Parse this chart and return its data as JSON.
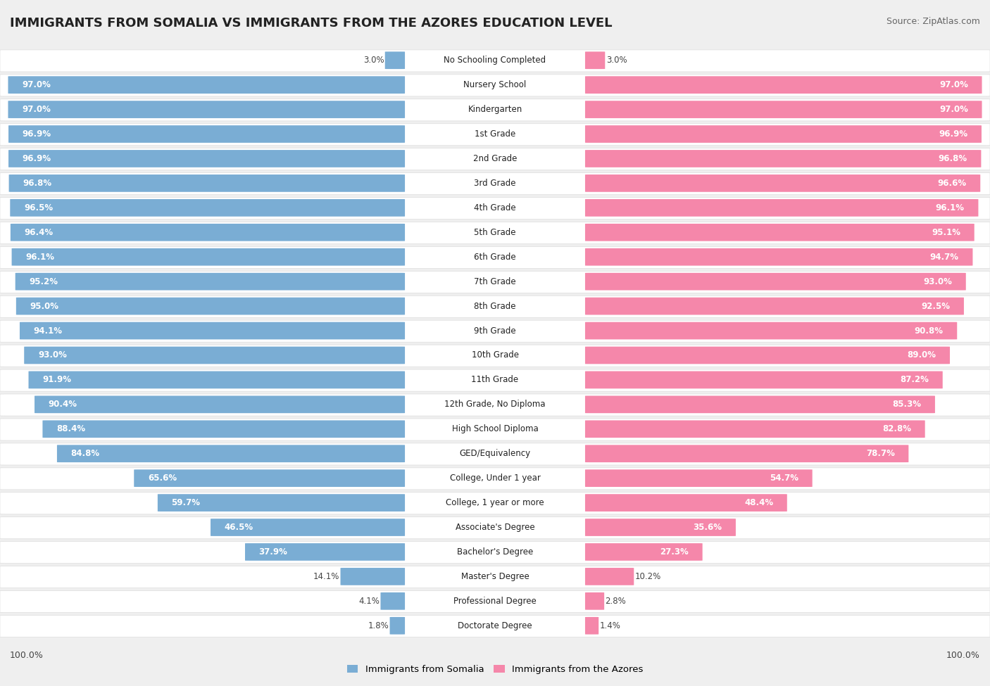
{
  "title": "IMMIGRANTS FROM SOMALIA VS IMMIGRANTS FROM THE AZORES EDUCATION LEVEL",
  "source": "Source: ZipAtlas.com",
  "categories": [
    "No Schooling Completed",
    "Nursery School",
    "Kindergarten",
    "1st Grade",
    "2nd Grade",
    "3rd Grade",
    "4th Grade",
    "5th Grade",
    "6th Grade",
    "7th Grade",
    "8th Grade",
    "9th Grade",
    "10th Grade",
    "11th Grade",
    "12th Grade, No Diploma",
    "High School Diploma",
    "GED/Equivalency",
    "College, Under 1 year",
    "College, 1 year or more",
    "Associate's Degree",
    "Bachelor's Degree",
    "Master's Degree",
    "Professional Degree",
    "Doctorate Degree"
  ],
  "somalia_values": [
    3.0,
    97.0,
    97.0,
    96.9,
    96.9,
    96.8,
    96.5,
    96.4,
    96.1,
    95.2,
    95.0,
    94.1,
    93.0,
    91.9,
    90.4,
    88.4,
    84.8,
    65.6,
    59.7,
    46.5,
    37.9,
    14.1,
    4.1,
    1.8
  ],
  "azores_values": [
    3.0,
    97.0,
    97.0,
    96.9,
    96.8,
    96.6,
    96.1,
    95.1,
    94.7,
    93.0,
    92.5,
    90.8,
    89.0,
    87.2,
    85.3,
    82.8,
    78.7,
    54.7,
    48.4,
    35.6,
    27.3,
    10.2,
    2.8,
    1.4
  ],
  "somalia_color": "#7aadd4",
  "azores_color": "#f587aa",
  "background_color": "#efefef",
  "row_bg_color": "#ffffff",
  "row_border_color": "#dddddd",
  "title_fontsize": 13,
  "source_fontsize": 9,
  "label_fontsize": 8.5,
  "category_fontsize": 8.5,
  "legend_label_somalia": "Immigrants from Somalia",
  "legend_label_azores": "Immigrants from the Azores",
  "max_value": 100.0
}
